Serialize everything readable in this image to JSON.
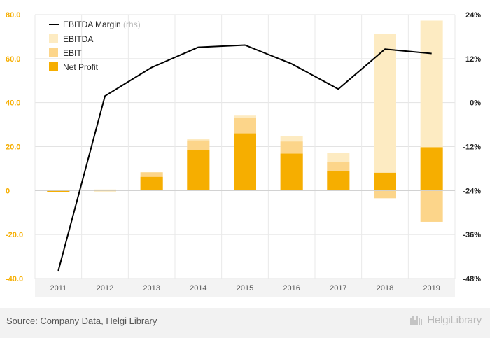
{
  "chart_data": {
    "type": "bar",
    "categories": [
      "2011",
      "2012",
      "2013",
      "2014",
      "2015",
      "2016",
      "2017",
      "2018",
      "2019"
    ],
    "series": [
      {
        "name": "EBITDA",
        "values": [
          -0.3,
          0.5,
          8.3,
          23.4,
          34.1,
          24.8,
          17.0,
          71.4,
          77.3
        ]
      },
      {
        "name": "EBIT",
        "values": [
          -0.4,
          0.3,
          8.3,
          22.8,
          33.0,
          22.3,
          13.1,
          -3.5,
          -14.2
        ]
      },
      {
        "name": "Net Profit",
        "values": [
          -0.6,
          0.2,
          6.2,
          18.4,
          26.0,
          16.8,
          8.8,
          8.1,
          19.7
        ]
      },
      {
        "name": "EBITDA Margin",
        "axis": "right",
        "unit": "%",
        "values": [
          -45.9,
          1.8,
          9.6,
          15.1,
          15.7,
          10.6,
          3.7,
          14.6,
          13.4
        ]
      }
    ],
    "legend_note": "(rhs)",
    "ylim": [
      -40,
      80
    ],
    "y_ticks": [
      "80.0",
      "60.0",
      "40.0",
      "20.0",
      "0",
      "-20.0",
      "-40.0"
    ],
    "y2lim": [
      -48,
      24
    ],
    "y2_ticks": [
      "24%",
      "12%",
      "0%",
      "-12%",
      "-24%",
      "-36%",
      "-48%"
    ],
    "grid": true,
    "legend_position": "top-left",
    "colors": {
      "EBITDA": "#fdebc2",
      "EBIT": "#fcd58a",
      "Net Profit": "#f6ae00",
      "EBITDA Margin": "#000000",
      "left_axis_text": "#f6ae00"
    }
  },
  "footer": {
    "source": "Source: Company Data, Helgi Library",
    "brand": "HelgiLibrary"
  }
}
